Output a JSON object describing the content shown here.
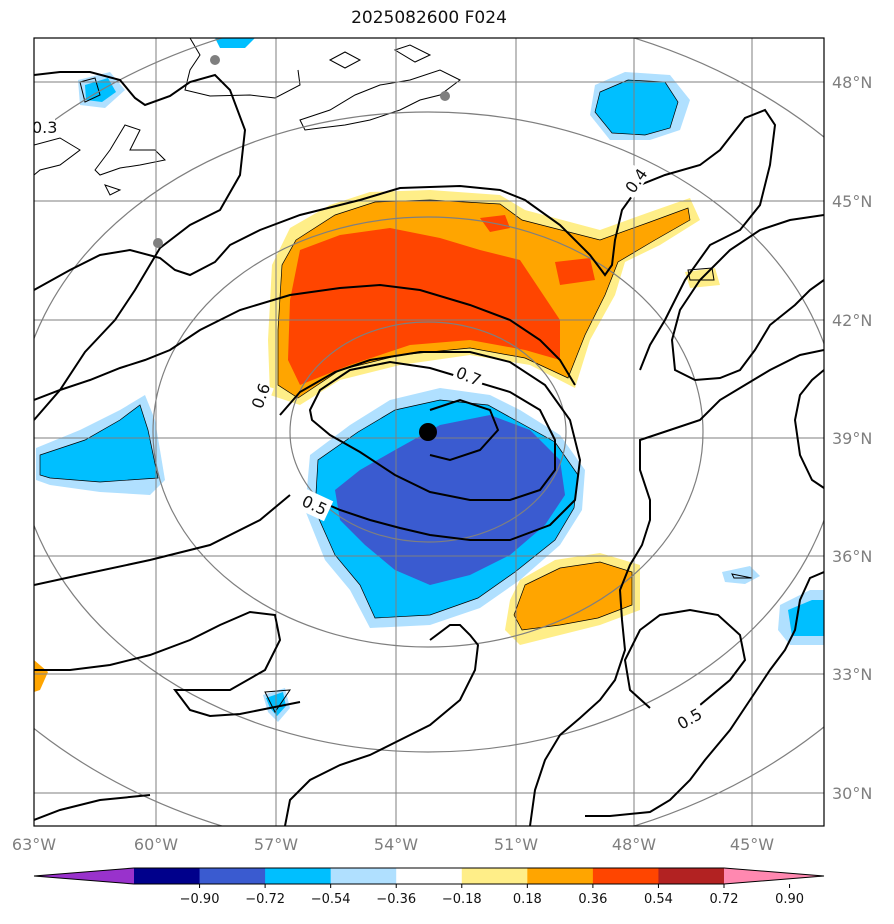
{
  "title": "2025082600 F024",
  "map": {
    "lat_labels": [
      "48°N",
      "45°N",
      "42°N",
      "39°N",
      "36°N",
      "33°N",
      "30°N"
    ],
    "lon_labels": [
      "63°W",
      "60°W",
      "57°W",
      "54°W",
      "51°W",
      "48°W",
      "45°W"
    ],
    "contour_labels": [
      "0.3",
      "0.4",
      "0.6",
      "0.7",
      "0.5",
      "0.5"
    ],
    "storm_marker": "storm-center-icon"
  },
  "colorbar": {
    "ticks": [
      "−0.90",
      "−0.72",
      "−0.54",
      "−0.36",
      "−0.18",
      "0.18",
      "0.36",
      "0.54",
      "0.72",
      "0.90"
    ],
    "colors": [
      "#9932cc",
      "#00008b",
      "#3a5bd0",
      "#00bfff",
      "#b0e0ff",
      "#ffffff",
      "#ffee88",
      "#ffa500",
      "#ff4500",
      "#b22222",
      "#ff88b0"
    ]
  }
}
